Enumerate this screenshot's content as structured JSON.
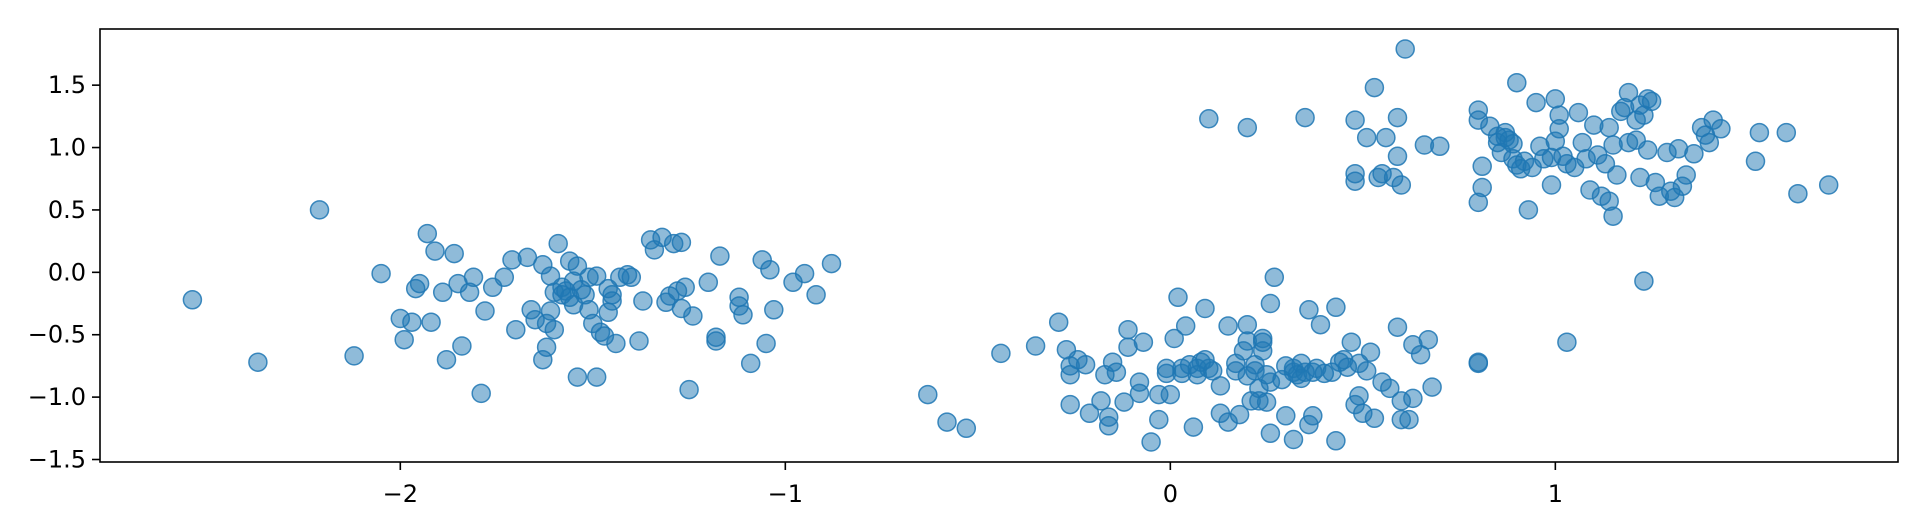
{
  "chart_data": {
    "type": "scatter",
    "title": "",
    "xlabel": "",
    "ylabel": "",
    "xlim": [
      -2.78,
      1.89
    ],
    "ylim": [
      -1.52,
      1.95
    ],
    "grid": false,
    "legend": "none",
    "marker_color": "#1f77b4",
    "marker_alpha": 0.5,
    "x_ticks": [
      {
        "value": -2,
        "label": "−2"
      },
      {
        "value": -1,
        "label": "−1"
      },
      {
        "value": 0,
        "label": "0"
      },
      {
        "value": 1,
        "label": "1"
      }
    ],
    "y_ticks": [
      {
        "value": -1.5,
        "label": "−1.5"
      },
      {
        "value": -1.0,
        "label": "−1.0"
      },
      {
        "value": -0.5,
        "label": "−0.5"
      },
      {
        "value": 0.0,
        "label": "0.0"
      },
      {
        "value": 0.5,
        "label": "0.5"
      },
      {
        "value": 1.0,
        "label": "1.0"
      },
      {
        "value": 1.5,
        "label": "1.5"
      }
    ],
    "series": [
      {
        "points": [
          [
            -2.54,
            -0.22
          ],
          [
            -2.37,
            -0.72
          ],
          [
            -2.21,
            0.5
          ],
          [
            -2.12,
            -0.67
          ],
          [
            -2.05,
            -0.01
          ],
          [
            -2.0,
            -0.37
          ],
          [
            -1.99,
            -0.54
          ],
          [
            -1.97,
            -0.4
          ],
          [
            -1.96,
            -0.13
          ],
          [
            -1.95,
            -0.09
          ],
          [
            -1.93,
            0.31
          ],
          [
            -1.92,
            -0.4
          ],
          [
            -1.91,
            0.17
          ],
          [
            -1.89,
            -0.16
          ],
          [
            -1.88,
            -0.7
          ],
          [
            -1.86,
            0.15
          ],
          [
            -1.85,
            -0.09
          ],
          [
            -1.84,
            -0.59
          ],
          [
            -1.82,
            -0.16
          ],
          [
            -1.81,
            -0.04
          ],
          [
            -1.79,
            -0.97
          ],
          [
            -1.78,
            -0.31
          ],
          [
            -1.76,
            -0.12
          ],
          [
            -1.73,
            -0.04
          ],
          [
            -1.71,
            0.1
          ],
          [
            -1.7,
            -0.46
          ],
          [
            -1.67,
            0.12
          ],
          [
            -1.66,
            -0.3
          ],
          [
            -1.65,
            -0.38
          ],
          [
            -1.63,
            -0.7
          ],
          [
            -1.63,
            0.06
          ],
          [
            -1.62,
            -0.41
          ],
          [
            -1.62,
            -0.6
          ],
          [
            -1.61,
            -0.03
          ],
          [
            -1.61,
            -0.31
          ],
          [
            -1.6,
            -0.16
          ],
          [
            -1.6,
            -0.46
          ],
          [
            -1.59,
            0.23
          ],
          [
            -1.58,
            -0.18
          ],
          [
            -1.58,
            -0.12
          ],
          [
            -1.57,
            -0.15
          ],
          [
            -1.56,
            0.09
          ],
          [
            -1.56,
            -0.2
          ],
          [
            -1.55,
            -0.26
          ],
          [
            -1.55,
            -0.07
          ],
          [
            -1.54,
            0.05
          ],
          [
            -1.54,
            -0.84
          ],
          [
            -1.53,
            -0.14
          ],
          [
            -1.52,
            -0.18
          ],
          [
            -1.51,
            -0.04
          ],
          [
            -1.51,
            -0.3
          ],
          [
            -1.5,
            -0.41
          ],
          [
            -1.49,
            -0.03
          ],
          [
            -1.49,
            -0.84
          ],
          [
            -1.48,
            -0.48
          ],
          [
            -1.47,
            -0.51
          ],
          [
            -1.46,
            -0.13
          ],
          [
            -1.46,
            -0.32
          ],
          [
            -1.45,
            -0.23
          ],
          [
            -1.45,
            -0.18
          ],
          [
            -1.44,
            -0.57
          ],
          [
            -1.43,
            -0.04
          ],
          [
            -1.41,
            -0.02
          ],
          [
            -1.4,
            -0.04
          ],
          [
            -1.38,
            -0.55
          ],
          [
            -1.37,
            -0.23
          ],
          [
            -1.35,
            0.26
          ],
          [
            -1.34,
            0.18
          ],
          [
            -1.32,
            0.28
          ],
          [
            -1.31,
            -0.24
          ],
          [
            -1.3,
            -0.19
          ],
          [
            -1.29,
            0.23
          ],
          [
            -1.28,
            -0.15
          ],
          [
            -1.27,
            0.24
          ],
          [
            -1.27,
            -0.29
          ],
          [
            -1.26,
            -0.12
          ],
          [
            -1.25,
            -0.94
          ],
          [
            -1.24,
            -0.35
          ],
          [
            -1.2,
            -0.08
          ],
          [
            -1.18,
            -0.52
          ],
          [
            -1.18,
            -0.55
          ],
          [
            -1.17,
            0.13
          ],
          [
            -1.12,
            -0.2
          ],
          [
            -1.12,
            -0.27
          ],
          [
            -1.11,
            -0.34
          ],
          [
            -1.09,
            -0.73
          ],
          [
            -1.06,
            0.1
          ],
          [
            -1.05,
            -0.57
          ],
          [
            -1.04,
            0.02
          ],
          [
            -1.03,
            -0.3
          ],
          [
            -0.98,
            -0.08
          ],
          [
            -0.95,
            -0.01
          ],
          [
            -0.92,
            -0.18
          ],
          [
            -0.88,
            0.07
          ]
        ]
      },
      {
        "points": [
          [
            -0.63,
            -0.98
          ],
          [
            -0.58,
            -1.2
          ],
          [
            -0.53,
            -1.25
          ],
          [
            -0.44,
            -0.65
          ],
          [
            -0.35,
            -0.59
          ],
          [
            -0.29,
            -0.4
          ],
          [
            -0.27,
            -0.62
          ],
          [
            -0.26,
            -0.75
          ],
          [
            -0.26,
            -0.82
          ],
          [
            -0.26,
            -1.06
          ],
          [
            -0.24,
            -0.7
          ],
          [
            -0.22,
            -0.74
          ],
          [
            -0.21,
            -1.13
          ],
          [
            -0.18,
            -1.03
          ],
          [
            -0.17,
            -0.82
          ],
          [
            -0.16,
            -1.23
          ],
          [
            -0.16,
            -1.16
          ],
          [
            -0.15,
            -0.72
          ],
          [
            -0.14,
            -0.8
          ],
          [
            -0.12,
            -1.04
          ],
          [
            -0.11,
            -0.46
          ],
          [
            -0.11,
            -0.6
          ],
          [
            -0.08,
            -0.88
          ],
          [
            -0.08,
            -0.97
          ],
          [
            -0.07,
            -0.56
          ],
          [
            -0.05,
            -1.36
          ],
          [
            -0.03,
            -1.18
          ],
          [
            -0.03,
            -0.98
          ],
          [
            -0.01,
            -0.77
          ],
          [
            -0.01,
            -0.81
          ],
          [
            0.0,
            -0.98
          ],
          [
            0.01,
            -0.53
          ],
          [
            0.02,
            -0.2
          ],
          [
            0.03,
            -0.77
          ],
          [
            0.03,
            -0.81
          ],
          [
            0.04,
            -0.43
          ],
          [
            0.05,
            -0.74
          ],
          [
            0.06,
            -1.24
          ],
          [
            0.07,
            -0.82
          ],
          [
            0.07,
            -0.77
          ],
          [
            0.08,
            -0.72
          ],
          [
            0.09,
            -0.29
          ],
          [
            0.09,
            -0.7
          ],
          [
            0.1,
            -0.77
          ],
          [
            0.11,
            -0.79
          ],
          [
            0.13,
            -0.91
          ],
          [
            0.13,
            -1.13
          ],
          [
            0.15,
            -0.43
          ],
          [
            0.15,
            -1.2
          ],
          [
            0.17,
            -0.79
          ],
          [
            0.17,
            -0.73
          ],
          [
            0.18,
            -1.14
          ],
          [
            0.19,
            -0.63
          ],
          [
            0.2,
            -0.55
          ],
          [
            0.2,
            -0.83
          ],
          [
            0.2,
            -0.42
          ],
          [
            0.21,
            -1.03
          ],
          [
            0.22,
            -0.74
          ],
          [
            0.22,
            -0.79
          ],
          [
            0.23,
            -0.93
          ],
          [
            0.23,
            -1.03
          ],
          [
            0.24,
            -0.63
          ],
          [
            0.24,
            -0.53
          ],
          [
            0.24,
            -0.56
          ],
          [
            0.25,
            -0.82
          ],
          [
            0.25,
            -1.04
          ],
          [
            0.26,
            -0.88
          ],
          [
            0.26,
            -1.29
          ],
          [
            0.26,
            -0.25
          ],
          [
            0.27,
            -0.04
          ],
          [
            0.29,
            -0.86
          ],
          [
            0.3,
            -0.75
          ],
          [
            0.3,
            -1.15
          ],
          [
            0.32,
            -0.8
          ],
          [
            0.32,
            -0.77
          ],
          [
            0.32,
            -1.34
          ],
          [
            0.33,
            -0.82
          ],
          [
            0.34,
            -0.73
          ],
          [
            0.34,
            -0.85
          ],
          [
            0.35,
            -0.8
          ],
          [
            0.36,
            -1.22
          ],
          [
            0.36,
            -0.3
          ],
          [
            0.37,
            -1.15
          ],
          [
            0.37,
            -0.8
          ],
          [
            0.38,
            -0.77
          ],
          [
            0.39,
            -0.42
          ],
          [
            0.4,
            -0.81
          ],
          [
            0.42,
            -0.8
          ],
          [
            0.43,
            -1.35
          ],
          [
            0.43,
            -0.28
          ],
          [
            0.44,
            -0.72
          ],
          [
            0.45,
            -0.7
          ],
          [
            0.46,
            -0.76
          ],
          [
            0.47,
            -0.56
          ],
          [
            0.48,
            -1.06
          ],
          [
            0.49,
            -0.73
          ],
          [
            0.49,
            -0.99
          ],
          [
            0.5,
            -1.13
          ],
          [
            0.51,
            -0.79
          ],
          [
            0.52,
            -0.64
          ],
          [
            0.53,
            -1.17
          ],
          [
            0.55,
            -0.88
          ],
          [
            0.57,
            -0.93
          ],
          [
            0.59,
            -0.44
          ],
          [
            0.6,
            -1.03
          ],
          [
            0.6,
            -1.18
          ],
          [
            0.62,
            -1.18
          ],
          [
            0.63,
            -1.01
          ],
          [
            0.63,
            -0.58
          ],
          [
            0.65,
            -0.66
          ],
          [
            0.67,
            -0.54
          ],
          [
            0.68,
            -0.92
          ],
          [
            0.8,
            -0.73
          ],
          [
            0.8,
            -0.72
          ],
          [
            1.03,
            -0.56
          ],
          [
            1.23,
            -0.07
          ]
        ]
      },
      {
        "points": [
          [
            0.1,
            1.23
          ],
          [
            0.2,
            1.16
          ],
          [
            0.35,
            1.24
          ],
          [
            0.48,
            0.79
          ],
          [
            0.48,
            0.73
          ],
          [
            0.48,
            1.22
          ],
          [
            0.51,
            1.08
          ],
          [
            0.53,
            1.48
          ],
          [
            0.54,
            0.76
          ],
          [
            0.55,
            0.79
          ],
          [
            0.56,
            1.08
          ],
          [
            0.58,
            0.76
          ],
          [
            0.59,
            1.24
          ],
          [
            0.59,
            0.93
          ],
          [
            0.6,
            0.7
          ],
          [
            0.61,
            1.79
          ],
          [
            0.66,
            1.02
          ],
          [
            0.7,
            1.01
          ],
          [
            0.8,
            1.3
          ],
          [
            0.8,
            1.22
          ],
          [
            0.8,
            0.56
          ],
          [
            0.81,
            0.68
          ],
          [
            0.81,
            0.85
          ],
          [
            0.83,
            1.17
          ],
          [
            0.85,
            1.09
          ],
          [
            0.85,
            1.04
          ],
          [
            0.86,
            0.96
          ],
          [
            0.87,
            1.12
          ],
          [
            0.87,
            1.08
          ],
          [
            0.88,
            1.06
          ],
          [
            0.89,
            1.03
          ],
          [
            0.89,
            0.91
          ],
          [
            0.9,
            0.86
          ],
          [
            0.9,
            1.52
          ],
          [
            0.91,
            0.83
          ],
          [
            0.92,
            0.89
          ],
          [
            0.93,
            0.5
          ],
          [
            0.94,
            0.84
          ],
          [
            0.95,
            1.36
          ],
          [
            0.96,
            1.01
          ],
          [
            0.97,
            0.91
          ],
          [
            0.99,
            0.7
          ],
          [
            0.99,
            0.92
          ],
          [
            1.0,
            1.39
          ],
          [
            1.0,
            1.05
          ],
          [
            1.01,
            1.15
          ],
          [
            1.01,
            1.26
          ],
          [
            1.02,
            0.93
          ],
          [
            1.03,
            0.87
          ],
          [
            1.05,
            0.84
          ],
          [
            1.06,
            1.28
          ],
          [
            1.07,
            1.04
          ],
          [
            1.08,
            0.91
          ],
          [
            1.09,
            0.66
          ],
          [
            1.1,
            1.18
          ],
          [
            1.11,
            0.94
          ],
          [
            1.12,
            0.61
          ],
          [
            1.13,
            0.87
          ],
          [
            1.14,
            0.57
          ],
          [
            1.14,
            1.16
          ],
          [
            1.15,
            1.02
          ],
          [
            1.15,
            0.45
          ],
          [
            1.16,
            0.78
          ],
          [
            1.17,
            1.29
          ],
          [
            1.18,
            1.32
          ],
          [
            1.19,
            1.04
          ],
          [
            1.19,
            1.44
          ],
          [
            1.21,
            1.06
          ],
          [
            1.21,
            1.22
          ],
          [
            1.22,
            1.34
          ],
          [
            1.22,
            0.76
          ],
          [
            1.23,
            1.26
          ],
          [
            1.24,
            1.39
          ],
          [
            1.24,
            0.98
          ],
          [
            1.25,
            1.37
          ],
          [
            1.26,
            0.72
          ],
          [
            1.27,
            0.61
          ],
          [
            1.29,
            0.96
          ],
          [
            1.3,
            0.65
          ],
          [
            1.31,
            0.6
          ],
          [
            1.32,
            0.99
          ],
          [
            1.33,
            0.69
          ],
          [
            1.34,
            0.78
          ],
          [
            1.36,
            0.95
          ],
          [
            1.38,
            1.16
          ],
          [
            1.39,
            1.1
          ],
          [
            1.4,
            1.04
          ],
          [
            1.41,
            1.22
          ],
          [
            1.43,
            1.15
          ],
          [
            1.52,
            0.89
          ],
          [
            1.53,
            1.12
          ],
          [
            1.6,
            1.12
          ],
          [
            1.63,
            0.63
          ],
          [
            1.71,
            0.7
          ]
        ]
      }
    ]
  }
}
